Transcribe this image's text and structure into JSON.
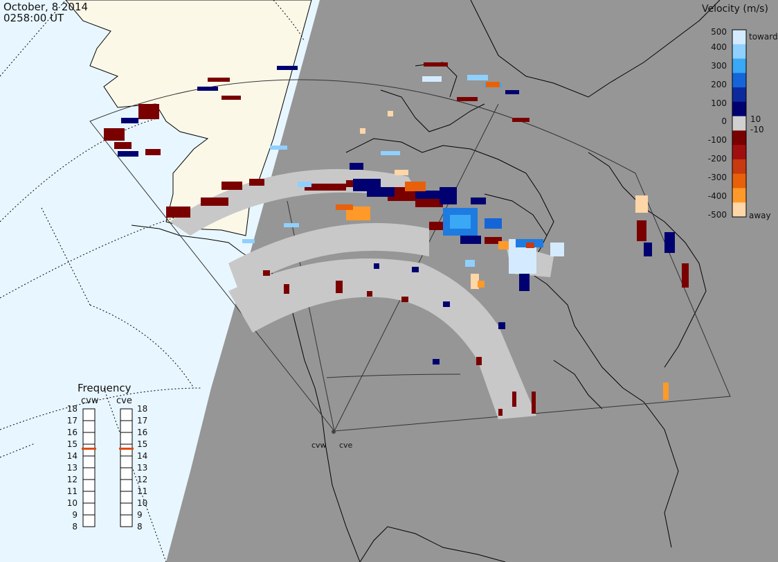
{
  "header": {
    "date": "October, 8 2014",
    "time": "0258:00 UT"
  },
  "velocity_legend": {
    "title": "Velocity (m/s)",
    "ticks": [
      "500",
      "400",
      "300",
      "200",
      "100",
      "10",
      "0",
      "-10",
      "-100",
      "-200",
      "-300",
      "-400",
      "-500"
    ],
    "toward_label": "toward",
    "away_label": "away",
    "colors": [
      "#d4ebff",
      "#8fd0ff",
      "#3aa8f5",
      "#1565d8",
      "#0b2a9c",
      "#000070",
      "#d0d0d0",
      "#7a0000",
      "#a00f0f",
      "#c83a10",
      "#e8610a",
      "#ff9a2a",
      "#ffd6a8"
    ]
  },
  "frequency_panel": {
    "title": "Frequency",
    "radars": [
      {
        "name": "cvw",
        "frequency_mhz": 15
      },
      {
        "name": "cve",
        "frequency_mhz": 15
      }
    ],
    "ticks": [
      "18",
      "17",
      "16",
      "15",
      "14",
      "13",
      "12",
      "11",
      "10",
      "9",
      "8"
    ]
  },
  "sites": [
    {
      "label": "cvw"
    },
    {
      "label": "cve"
    }
  ],
  "colors": {
    "night": "#969696",
    "day_ocean": "#e8f6ff",
    "day_land": "#fbf8e8",
    "coast": "#000000",
    "ground_scatter": "#c8c8c8",
    "marker": "#e04a10"
  }
}
